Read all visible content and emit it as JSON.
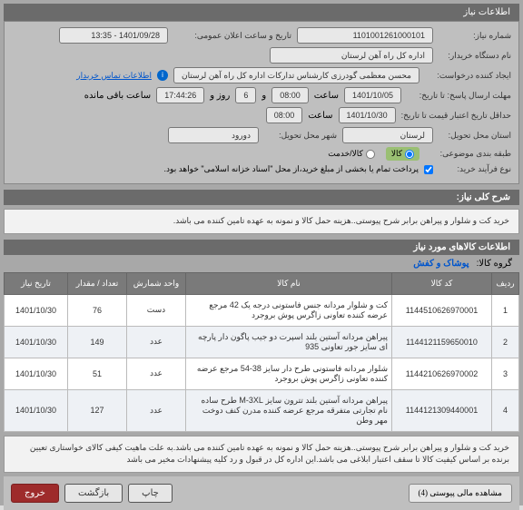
{
  "header": {
    "title": "اطلاعات نیاز"
  },
  "form": {
    "req_no_label": "شماره نیاز:",
    "req_no": "1101001261000101",
    "announce_label": "تاریخ و ساعت اعلان عمومی:",
    "announce_val": "1401/09/28 - 13:35",
    "buyer_label": "نام دستگاه خریدار:",
    "buyer_val": "اداره کل راه آهن لرستان",
    "creator_label": "ایجاد کننده درخواست:",
    "creator_val": "محسن معظمی گودرزی کارشناس تدارکات اداره کل راه آهن لرستان",
    "contact_link": "اطلاعات تماس خریدار",
    "deadline_label": "مهلت ارسال پاسخ: تا تاریخ:",
    "deadline_date": "1401/10/05",
    "deadline_time_label": "ساعت",
    "deadline_time": "08:00",
    "and_label": "و",
    "days_val": "6",
    "days_label": "روز و",
    "remaining_time": "17:44:26",
    "remaining_label": "ساعت باقی مانده",
    "valid_label": "حداقل تاریخ اعتبار قیمت تا تاریخ:",
    "valid_date": "1401/10/30",
    "valid_time": "08:00",
    "province_label": "استان محل تحویل:",
    "province_val": "لرستان",
    "city_label": "شهر محل تحویل:",
    "city_val": "دورود",
    "topic_label": "طبقه بندی موضوعی:",
    "radio_goods": "کالا",
    "radio_service": "کالا/خدمت",
    "payment_label": "نوع فرآیند خرید:",
    "payment_text": "پرداخت تمام یا بخشی از مبلغ خرید،از محل \"اسناد خزانه اسلامی\" خواهد بود."
  },
  "desc": {
    "title": "شرح کلی نیاز:",
    "text": "خرید کت و شلوار و پیراهن برابر شرح پیوستی..هزینه حمل کالا و نمونه به عهده تامین کننده می باشد."
  },
  "items_header": "اطلاعات کالاهای مورد نیاز",
  "group": {
    "label": "گروه کالا:",
    "value": "پوشاک و کفش"
  },
  "table": {
    "cols": [
      "ردیف",
      "کد کالا",
      "نام کالا",
      "واحد شمارش",
      "تعداد / مقدار",
      "تاریخ نیاز"
    ],
    "rows": [
      [
        "1",
        "1144510626970001",
        "کت و شلوار مردانه جنس فاستونی درجه یک 42 مرجع عرضه کننده تعاونی زاگرس پوش بروجرد",
        "دست",
        "76",
        "1401/10/30"
      ],
      [
        "2",
        "1144121159650010",
        "پیراهن مردانه آستین بلند اسپرت دو جیب پاگون دار پارچه ای سایز جور تعاونی 935",
        "عدد",
        "149",
        "1401/10/30"
      ],
      [
        "3",
        "1144210626970002",
        "شلوار مردانه فاستونی طرح دار سایز 38-54 مرجع عرضه کننده تعاونی زاگرس پوش بروجرد",
        "عدد",
        "51",
        "1401/10/30"
      ],
      [
        "4",
        "1144121309440001",
        "پیراهن مردانه آستین بلند تترون سایز M-3XL طرح ساده نام تجارتی متفرقه مرجع عرضه کننده مدرن کنف دوخت مهر وطن",
        "عدد",
        "127",
        "1401/10/30"
      ]
    ]
  },
  "footer_desc": "خرید کت و شلوار و پیراهن برابر شرح پیوستی..هزینه حمل کالا و نمونه به عهده تامین کننده می باشد.به علت ماهیت کیفی کالای خواستاری تعیین برنده بر اساس کیفیت کالا تا سقف اعتبار ابلاغی می باشد.این اداره کل در قبول و رد کلیه پیشنهادات مخیر می باشد",
  "buttons": {
    "attach": "مشاهده مالی پیوستی (4)",
    "print": "چاپ",
    "back": "بازگشت",
    "close": "خروج"
  },
  "colors": {
    "header_bg": "#6b6b6b",
    "panel_bg": "#bfbfbf",
    "selected_bg": "#9abf73",
    "btn_primary": "#9e2b2b"
  }
}
